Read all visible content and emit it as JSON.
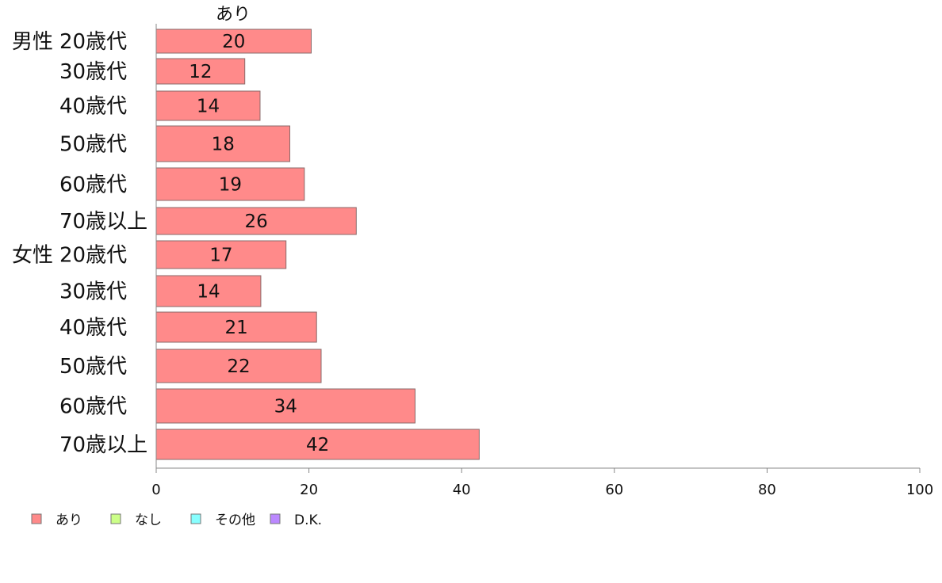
{
  "chart_data": {
    "type": "bar",
    "orientation": "horizontal",
    "column_header": "あり",
    "groups": [
      {
        "label": "男性",
        "start_index": 0
      },
      {
        "label": "女性",
        "start_index": 6
      }
    ],
    "categories": [
      "20歳代",
      "30歳代",
      "40歳代",
      "50歳代",
      "60歳代",
      "70歳以上",
      "20歳代",
      "30歳代",
      "40歳代",
      "50歳代",
      "60歳代",
      "70歳以上"
    ],
    "series": [
      {
        "name": "あり",
        "color": "#ff8a8a",
        "values": [
          20,
          12,
          14,
          18,
          19,
          26,
          17,
          14,
          21,
          22,
          34,
          42
        ],
        "actual_values": [
          20.3,
          11.6,
          13.6,
          17.5,
          19.4,
          26.2,
          17.0,
          13.7,
          21.0,
          21.6,
          33.9,
          42.3
        ]
      }
    ],
    "xlim": [
      0,
      100
    ],
    "xticks": [
      0,
      20,
      40,
      60,
      80,
      100
    ],
    "grid": false,
    "legend": {
      "placement": "bottom-left",
      "items": [
        {
          "label": "あり",
          "color": "#ff8a8a"
        },
        {
          "label": "なし",
          "color": "#ccff88"
        },
        {
          "label": "その他",
          "color": "#88ffff"
        },
        {
          "label": "D.K.",
          "color": "#bb88ff"
        }
      ]
    }
  }
}
